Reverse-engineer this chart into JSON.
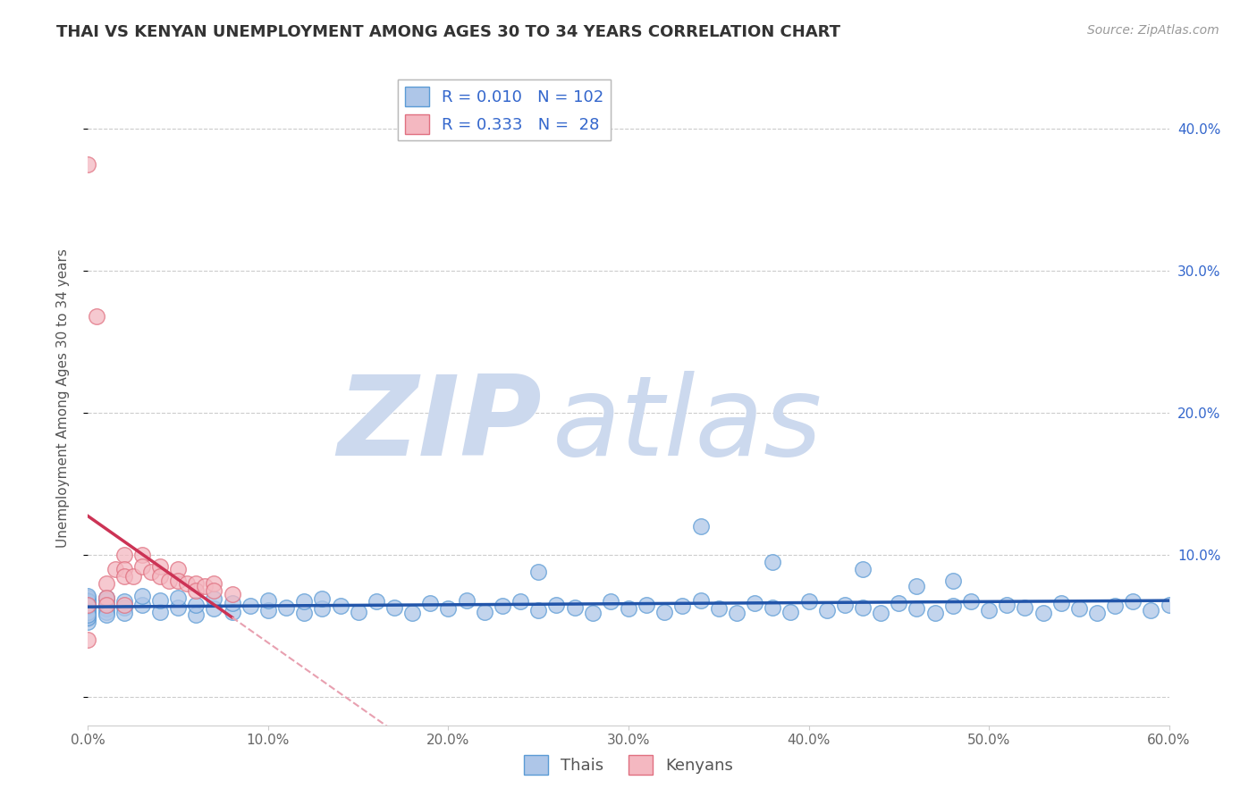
{
  "title": "THAI VS KENYAN UNEMPLOYMENT AMONG AGES 30 TO 34 YEARS CORRELATION CHART",
  "source": "Source: ZipAtlas.com",
  "ylabel": "Unemployment Among Ages 30 to 34 years",
  "xlim": [
    0.0,
    0.6
  ],
  "ylim": [
    -0.02,
    0.44
  ],
  "xticks": [
    0.0,
    0.1,
    0.2,
    0.3,
    0.4,
    0.5,
    0.6
  ],
  "xticklabels": [
    "0.0%",
    "10.0%",
    "20.0%",
    "30.0%",
    "40.0%",
    "50.0%",
    "60.0%"
  ],
  "yticks": [
    0.0,
    0.1,
    0.2,
    0.3,
    0.4
  ],
  "yticklabels": [
    "",
    "10.0%",
    "20.0%",
    "30.0%",
    "40.0%"
  ],
  "thai_color": "#aec6e8",
  "thai_edge": "#5b9bd5",
  "kenyan_color": "#f4b8c1",
  "kenyan_edge": "#e07080",
  "thai_R": 0.01,
  "thai_N": 102,
  "kenyan_R": 0.333,
  "kenyan_N": 28,
  "thai_line_color": "#2255aa",
  "kenyan_line_color": "#cc3355",
  "kenyan_line_dash_color": "#e8a0b0",
  "grid_color": "#cccccc",
  "background_color": "#ffffff",
  "watermark_zip": "ZIP",
  "watermark_atlas": "atlas",
  "watermark_color": "#ccd9ee",
  "legend_label_1": "Thais",
  "legend_label_2": "Kenyans",
  "thai_x": [
    0.0,
    0.0,
    0.0,
    0.0,
    0.0,
    0.0,
    0.0,
    0.0,
    0.0,
    0.0,
    0.0,
    0.0,
    0.0,
    0.0,
    0.0,
    0.0,
    0.0,
    0.0,
    0.0,
    0.0,
    0.01,
    0.01,
    0.01,
    0.01,
    0.01,
    0.01,
    0.02,
    0.02,
    0.02,
    0.03,
    0.03,
    0.04,
    0.04,
    0.05,
    0.05,
    0.06,
    0.06,
    0.07,
    0.07,
    0.08,
    0.08,
    0.09,
    0.1,
    0.1,
    0.11,
    0.12,
    0.12,
    0.13,
    0.13,
    0.14,
    0.15,
    0.16,
    0.17,
    0.18,
    0.19,
    0.2,
    0.21,
    0.22,
    0.23,
    0.24,
    0.25,
    0.26,
    0.27,
    0.28,
    0.29,
    0.3,
    0.31,
    0.32,
    0.33,
    0.34,
    0.35,
    0.36,
    0.37,
    0.38,
    0.39,
    0.4,
    0.41,
    0.42,
    0.43,
    0.44,
    0.45,
    0.46,
    0.47,
    0.48,
    0.49,
    0.5,
    0.51,
    0.52,
    0.53,
    0.54,
    0.55,
    0.56,
    0.57,
    0.58,
    0.59,
    0.6,
    0.34,
    0.43,
    0.48,
    0.25,
    0.38,
    0.46
  ],
  "thai_y": [
    0.06,
    0.065,
    0.055,
    0.07,
    0.058,
    0.062,
    0.068,
    0.057,
    0.063,
    0.059,
    0.064,
    0.066,
    0.061,
    0.067,
    0.053,
    0.071,
    0.056,
    0.06,
    0.064,
    0.058,
    0.065,
    0.062,
    0.068,
    0.06,
    0.07,
    0.058,
    0.063,
    0.067,
    0.059,
    0.065,
    0.071,
    0.06,
    0.068,
    0.063,
    0.07,
    0.058,
    0.065,
    0.062,
    0.069,
    0.06,
    0.066,
    0.064,
    0.061,
    0.068,
    0.063,
    0.059,
    0.067,
    0.062,
    0.069,
    0.064,
    0.06,
    0.067,
    0.063,
    0.059,
    0.066,
    0.062,
    0.068,
    0.06,
    0.064,
    0.067,
    0.061,
    0.065,
    0.063,
    0.059,
    0.067,
    0.062,
    0.065,
    0.06,
    0.064,
    0.068,
    0.062,
    0.059,
    0.066,
    0.063,
    0.06,
    0.067,
    0.061,
    0.065,
    0.063,
    0.059,
    0.066,
    0.062,
    0.059,
    0.064,
    0.067,
    0.061,
    0.065,
    0.063,
    0.059,
    0.066,
    0.062,
    0.059,
    0.064,
    0.067,
    0.061,
    0.065,
    0.12,
    0.09,
    0.082,
    0.088,
    0.095,
    0.078
  ],
  "kenyan_x": [
    0.0,
    0.0,
    0.0,
    0.005,
    0.01,
    0.01,
    0.01,
    0.015,
    0.02,
    0.02,
    0.02,
    0.025,
    0.03,
    0.03,
    0.035,
    0.04,
    0.04,
    0.045,
    0.05,
    0.05,
    0.055,
    0.06,
    0.06,
    0.065,
    0.07,
    0.07,
    0.08,
    0.02
  ],
  "kenyan_y": [
    0.375,
    0.065,
    0.04,
    0.268,
    0.08,
    0.07,
    0.065,
    0.09,
    0.1,
    0.09,
    0.085,
    0.085,
    0.1,
    0.092,
    0.088,
    0.092,
    0.085,
    0.082,
    0.09,
    0.082,
    0.08,
    0.08,
    0.075,
    0.078,
    0.08,
    0.075,
    0.072,
    0.065
  ]
}
